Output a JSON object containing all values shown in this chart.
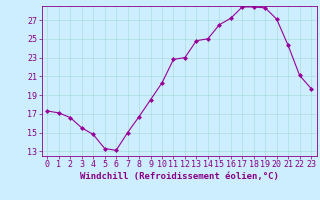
{
  "x": [
    0,
    1,
    2,
    3,
    4,
    5,
    6,
    7,
    8,
    9,
    10,
    11,
    12,
    13,
    14,
    15,
    16,
    17,
    18,
    19,
    20,
    21,
    22,
    23
  ],
  "y": [
    17.3,
    17.1,
    16.6,
    15.5,
    14.8,
    13.3,
    13.1,
    15.0,
    16.7,
    18.5,
    20.3,
    22.8,
    23.0,
    24.8,
    25.0,
    26.5,
    27.2,
    28.4,
    28.4,
    28.3,
    27.1,
    24.3,
    21.1,
    19.7
  ],
  "line_color": "#990099",
  "marker": "D",
  "marker_size": 2,
  "bg_color": "#cceeff",
  "grid_color": "#aadddd",
  "xlabel": "Windchill (Refroidissement éolien,°C)",
  "xlim": [
    -0.5,
    23.5
  ],
  "ylim": [
    12.5,
    28.5
  ],
  "yticks": [
    13,
    15,
    17,
    19,
    21,
    23,
    25,
    27
  ],
  "xtick_labels": [
    "0",
    "1",
    "2",
    "3",
    "4",
    "5",
    "6",
    "7",
    "8",
    "9",
    "10",
    "11",
    "12",
    "13",
    "14",
    "15",
    "16",
    "17",
    "18",
    "19",
    "20",
    "21",
    "22",
    "23"
  ],
  "xlabel_fontsize": 6.5,
  "tick_fontsize": 6.0,
  "tick_color": "#880088",
  "label_color": "#880088",
  "axis_color": "#880088",
  "linewidth": 0.8
}
